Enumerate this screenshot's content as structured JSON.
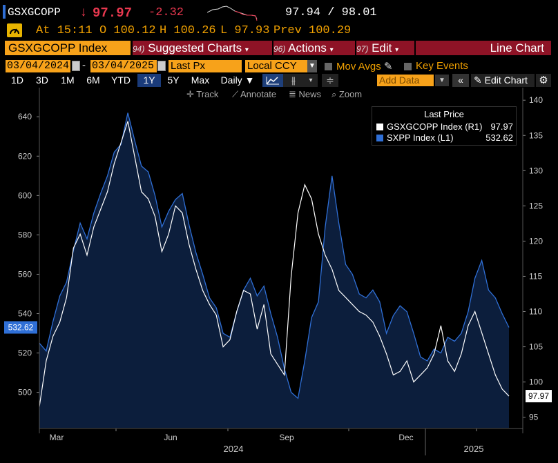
{
  "header": {
    "security": "GSXGCOPP",
    "last_arrow": "↓",
    "last": "97.97",
    "change": "-2.32",
    "bid_ask": "97.94 / 98.01",
    "time_label": "At 15:11",
    "open_label": "O 100.12",
    "high_label": "H 100.26",
    "low_label": "L 97.93",
    "prev_label": "Prev 100.29"
  },
  "toolbar": {
    "index": "GSXGCOPP Index",
    "suggested_num": "94)",
    "suggested": "Suggested Charts",
    "actions_num": "96)",
    "actions": "Actions",
    "edit_num": "97)",
    "edit": "Edit",
    "chart_type": "Line Chart",
    "date_from": "03/04/2024",
    "date_to": "03/04/2025",
    "field": "Last Px",
    "currency": "Local CCY",
    "mov_avgs": "Mov Avgs",
    "key_events": "Key Events",
    "periods": [
      "1D",
      "3D",
      "1M",
      "6M",
      "YTD",
      "1Y",
      "5Y",
      "Max"
    ],
    "frequency": "Daily",
    "add_data": "Add Data",
    "edit_chart": "Edit Chart",
    "track": "Track",
    "annotate": "Annotate",
    "news": "News",
    "zoom": "Zoom"
  },
  "legend": {
    "title": "Last Price",
    "items": [
      {
        "label": "GSXGCOPP Index  (R1)",
        "value": "97.97",
        "color": "#ffffff"
      },
      {
        "label": "SXPP Index  (L1)",
        "value": "532.62",
        "color": "#2f6fd6"
      }
    ]
  },
  "chart_data": {
    "type": "line",
    "x_ticks": [
      "Mar",
      "Jun",
      "Sep",
      "Dec"
    ],
    "year_labels": [
      "2024",
      "2025"
    ],
    "left_axis": {
      "ticks": [
        500,
        520,
        540,
        560,
        580,
        600,
        620,
        640
      ],
      "range": [
        482,
        652
      ]
    },
    "right_axis": {
      "ticks": [
        95,
        100,
        105,
        110,
        115,
        120,
        125,
        130,
        135,
        140
      ],
      "range": [
        93.5,
        141
      ]
    },
    "series": [
      {
        "name": "SXPP Index",
        "axis": "left",
        "color": "#2f6fd6",
        "fill": "#0c1e3c",
        "last_label": "532.62",
        "values": [
          525,
          521,
          536,
          549,
          556,
          572,
          586,
          578,
          591,
          601,
          610,
          622,
          626,
          642,
          628,
          615,
          612,
          600,
          584,
          592,
          598,
          601,
          585,
          571,
          560,
          548,
          543,
          530,
          528,
          541,
          552,
          558,
          549,
          554,
          540,
          528,
          512,
          500,
          497,
          516,
          538,
          546,
          584,
          610,
          586,
          565,
          560,
          550,
          548,
          552,
          546,
          530,
          539,
          544,
          541,
          530,
          518,
          516,
          522,
          520,
          528,
          526,
          530,
          541,
          558,
          567,
          552,
          548,
          540,
          533
        ]
      },
      {
        "name": "GSXGCOPP Index",
        "axis": "right",
        "color": "#ffffff",
        "last_label": "97.97",
        "values": [
          96.5,
          103,
          106.5,
          108.5,
          112,
          119,
          121,
          118,
          122,
          124.5,
          127,
          131,
          134,
          137,
          132,
          127,
          126,
          123.5,
          118.5,
          121,
          125,
          124,
          119.5,
          116,
          113,
          111,
          109.5,
          105,
          106,
          110,
          113,
          112.5,
          107.5,
          111,
          104,
          102.5,
          101,
          115,
          124,
          128,
          126,
          121,
          118,
          116,
          113,
          112,
          111,
          110,
          109.5,
          108.5,
          106.5,
          104,
          101,
          101.5,
          103,
          100,
          101,
          102,
          104,
          108,
          103,
          101.5,
          104,
          108,
          110,
          107,
          104,
          101,
          99,
          98
        ]
      }
    ]
  }
}
